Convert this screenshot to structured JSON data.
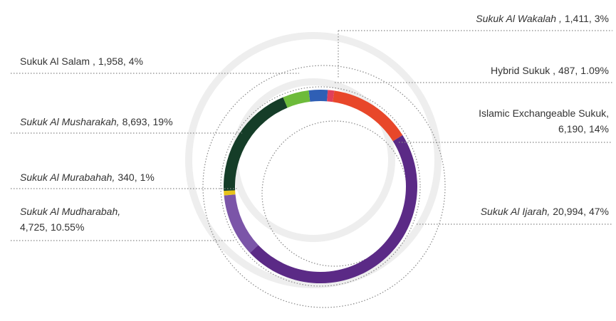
{
  "chart_data": {
    "type": "donut",
    "categories": [
      "Sukuk Al Wakalah ,",
      "Hybrid Sukuk ,",
      "Islamic Exchangeable Sukuk,",
      "Sukuk Al Ijarah,",
      "Sukuk Al Mudharabah,",
      "Sukuk Al Murabahah,",
      "Sukuk Al Musharakah,",
      "Sukuk Al Salam ,"
    ],
    "values": [
      1411,
      487,
      6190,
      20994,
      4725,
      340,
      8693,
      1958
    ],
    "value_labels": [
      "1,411,",
      "487,",
      "6,190,",
      "20,994,",
      "4,725,",
      "340,",
      "8,693,",
      "1,958,"
    ],
    "shares": [
      {
        "value": 3,
        "label": "3%"
      },
      {
        "value": 1.09,
        "label": "1.09%"
      },
      {
        "value": 14,
        "label": "14%"
      },
      {
        "value": 47,
        "label": "47%"
      },
      {
        "value": 10.55,
        "label": "10.55%"
      },
      {
        "value": 1,
        "label": "1%"
      },
      {
        "value": 19,
        "label": "19%"
      },
      {
        "value": 4,
        "label": "4%"
      }
    ],
    "colors": [
      "#2f5fb5",
      "#e0405a",
      "#e8472a",
      "#5b2a86",
      "#7b55a8",
      "#e7c21a",
      "#153d28",
      "#6dbb3a"
    ]
  }
}
